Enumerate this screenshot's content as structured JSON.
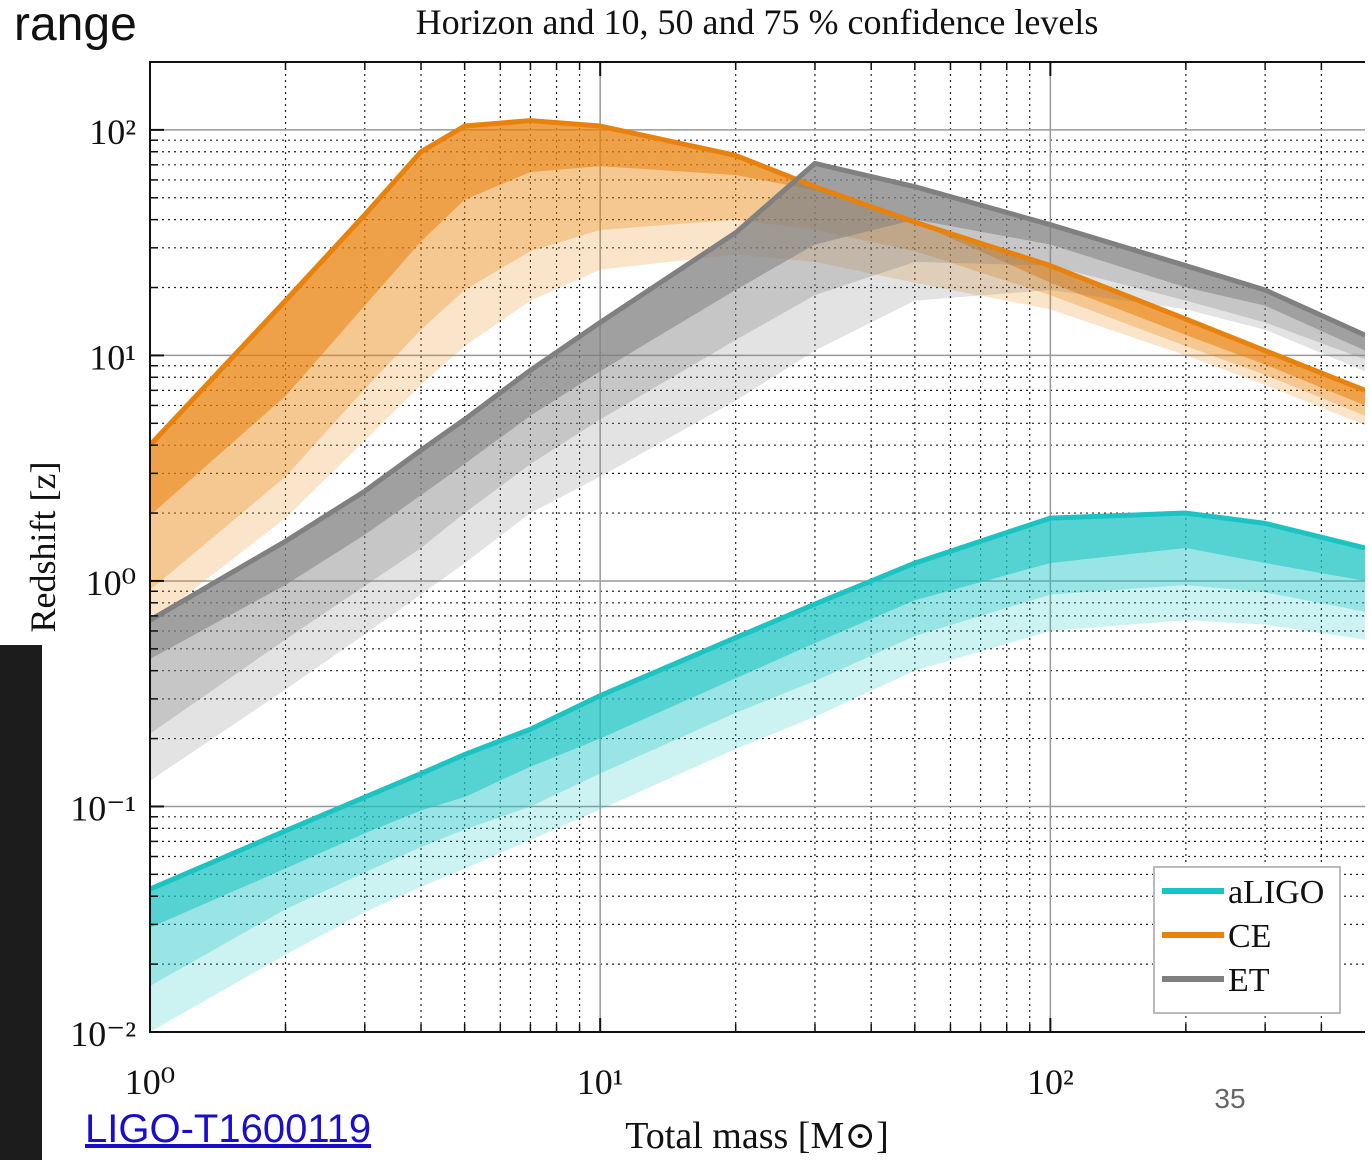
{
  "slide": {
    "title": "range",
    "link": "LIGO-T1600119",
    "page": 35
  },
  "chart_data": {
    "type": "band-line",
    "title": "Horizon and 10, 50 and 75 % confidence levels",
    "xlabel": "Total mass [M⊙]",
    "ylabel": "Redshift [z]",
    "xscale": "log",
    "yscale": "log",
    "grid": true,
    "legend": "lower right",
    "xlim": [
      1,
      500
    ],
    "ylim": [
      0.01,
      200
    ],
    "xticks": [
      {
        "value": 1,
        "label": "10⁰"
      },
      {
        "value": 10,
        "label": "10¹"
      },
      {
        "value": 100,
        "label": "10²"
      }
    ],
    "xminorticks": [
      2,
      3,
      4,
      5,
      6,
      7,
      8,
      9,
      20,
      30,
      40,
      50,
      60,
      70,
      80,
      90,
      200,
      300,
      400
    ],
    "yticks": [
      {
        "value": 0.01,
        "label": "10⁻²"
      },
      {
        "value": 0.1,
        "label": "10⁻¹"
      },
      {
        "value": 1,
        "label": "10⁰"
      },
      {
        "value": 10,
        "label": "10¹"
      },
      {
        "value": 100,
        "label": "10²"
      }
    ],
    "yminorticks": [
      0.02,
      0.03,
      0.04,
      0.05,
      0.06,
      0.07,
      0.08,
      0.09,
      0.2,
      0.3,
      0.4,
      0.5,
      0.6,
      0.7,
      0.8,
      0.9,
      2,
      3,
      4,
      5,
      6,
      7,
      8,
      9,
      20,
      30,
      40,
      50,
      60,
      70,
      80,
      90,
      200
    ],
    "x": [
      1,
      2,
      3,
      4,
      5,
      7,
      10,
      20,
      30,
      50,
      100,
      200,
      300,
      500
    ],
    "series": [
      {
        "name": "aLIGO",
        "color": "#1cc3c3",
        "values": [
          0.043,
          0.078,
          0.11,
          0.14,
          0.17,
          0.22,
          0.31,
          0.56,
          0.79,
          1.2,
          1.9,
          2.0,
          1.8,
          1.4
        ],
        "levels": [
          [
            0.029,
            0.053,
            0.076,
            0.096,
            0.11,
            0.15,
            0.2,
            0.37,
            0.53,
            0.82,
            1.2,
            1.4,
            1.2,
            1.0
          ],
          [
            0.016,
            0.035,
            0.051,
            0.066,
            0.079,
            0.1,
            0.14,
            0.26,
            0.36,
            0.57,
            0.87,
            0.96,
            0.89,
            0.73
          ],
          [
            0.01,
            0.022,
            0.034,
            0.044,
            0.053,
            0.071,
            0.097,
            0.18,
            0.25,
            0.4,
            0.6,
            0.67,
            0.64,
            0.55
          ]
        ]
      },
      {
        "name": "CE",
        "color": "#e8820c",
        "values": [
          4,
          17.5,
          42,
          80,
          104,
          110,
          104,
          77,
          56,
          39,
          25,
          14.5,
          10.5,
          7
        ],
        "levels": [
          [
            1.95,
            6.6,
            16.6,
            32,
            49,
            65,
            69,
            63,
            54,
            39,
            21,
            12.3,
            9.1,
            6.0
          ],
          [
            0.91,
            2.9,
            7.1,
            13,
            19.5,
            29,
            36,
            40,
            36,
            29,
            18.5,
            11,
            8.2,
            5.4
          ],
          [
            0.65,
            1.9,
            4.2,
            7.4,
            11,
            17.5,
            24,
            28,
            26,
            21,
            16,
            10,
            7.4,
            4.9
          ]
        ]
      },
      {
        "name": "ET",
        "color": "#808080",
        "values": [
          0.67,
          1.5,
          2.5,
          3.8,
          5.2,
          8.6,
          14,
          35,
          71,
          56,
          38,
          25,
          19.5,
          12.3
        ],
        "levels": [
          [
            0.45,
            0.96,
            1.6,
            2.4,
            3.3,
            5.4,
            8.5,
            19.5,
            31,
            40,
            31,
            20,
            16.6,
            10.5
          ],
          [
            0.21,
            0.55,
            0.95,
            1.4,
            2,
            3.3,
            5.2,
            11.7,
            18.5,
            26,
            25,
            17.5,
            14,
            9.6
          ],
          [
            0.13,
            0.33,
            0.58,
            0.87,
            1.2,
            2,
            2.9,
            6.3,
            10.5,
            17.5,
            19.5,
            16,
            13,
            8.5
          ]
        ]
      }
    ]
  }
}
